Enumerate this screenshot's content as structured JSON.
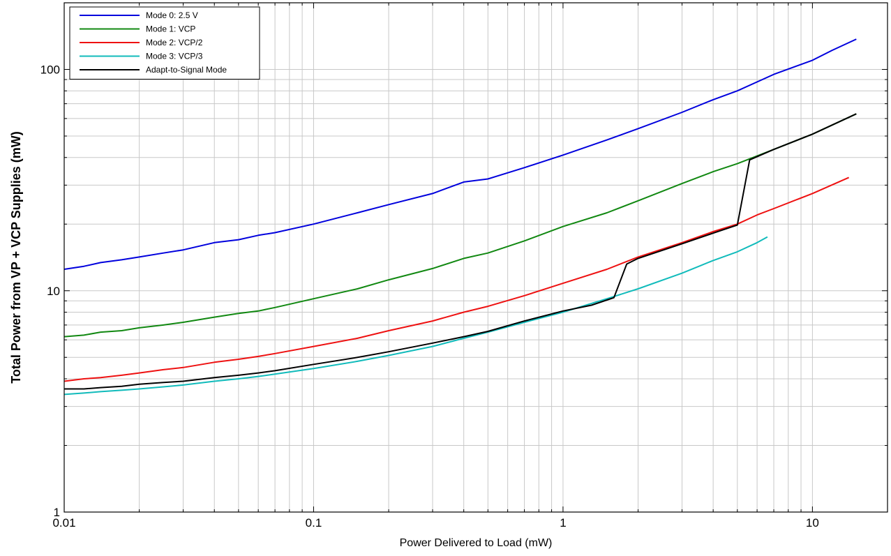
{
  "chart_data": {
    "type": "line",
    "title": "",
    "xlabel": "Power Delivered to Load (mW)",
    "ylabel": "Total Power from VP + VCP Supplies (mW)",
    "xscale": "log",
    "yscale": "log",
    "xlim": [
      0.01,
      20
    ],
    "ylim": [
      1,
      200
    ],
    "x_ticks": [
      {
        "value": 0.01,
        "label": "0.01"
      },
      {
        "value": 0.1,
        "label": "0.1"
      },
      {
        "value": 1,
        "label": "1"
      },
      {
        "value": 10,
        "label": "10"
      }
    ],
    "y_ticks": [
      {
        "value": 1,
        "label": "1"
      },
      {
        "value": 10,
        "label": "10"
      },
      {
        "value": 100,
        "label": "100"
      }
    ],
    "grid": true,
    "legend_position": "top-left",
    "series": [
      {
        "name": "Mode 0: 2.5 V",
        "color": "#0000dd",
        "x": [
          0.01,
          0.012,
          0.014,
          0.017,
          0.02,
          0.025,
          0.03,
          0.04,
          0.05,
          0.06,
          0.07,
          0.1,
          0.15,
          0.2,
          0.3,
          0.4,
          0.5,
          0.7,
          1,
          1.5,
          2,
          3,
          4,
          5,
          7,
          10,
          12,
          15
        ],
        "y": [
          12.5,
          12.9,
          13.4,
          13.8,
          14.2,
          14.8,
          15.3,
          16.5,
          17.0,
          17.8,
          18.3,
          20.0,
          22.5,
          24.5,
          27.5,
          31.0,
          32.0,
          36.0,
          41.0,
          48.0,
          54.0,
          64.0,
          73.0,
          80.0,
          95.0,
          110.0,
          122.0,
          137.0
        ]
      },
      {
        "name": "Mode 1: VCP",
        "color": "#118811",
        "x": [
          0.01,
          0.012,
          0.014,
          0.017,
          0.02,
          0.025,
          0.03,
          0.04,
          0.05,
          0.06,
          0.07,
          0.1,
          0.15,
          0.2,
          0.3,
          0.4,
          0.5,
          0.7,
          1,
          1.5,
          2,
          3,
          4,
          5,
          7,
          10,
          15
        ],
        "y": [
          6.2,
          6.3,
          6.5,
          6.6,
          6.8,
          7.0,
          7.2,
          7.6,
          7.9,
          8.1,
          8.4,
          9.2,
          10.2,
          11.2,
          12.6,
          14.0,
          14.8,
          16.8,
          19.5,
          22.5,
          25.5,
          30.5,
          34.5,
          37.5,
          43.5,
          51.0,
          63.0
        ]
      },
      {
        "name": "Mode 2: VCP/2",
        "color": "#ee1111",
        "x": [
          0.01,
          0.012,
          0.014,
          0.017,
          0.02,
          0.025,
          0.03,
          0.04,
          0.05,
          0.06,
          0.07,
          0.1,
          0.15,
          0.2,
          0.3,
          0.4,
          0.5,
          0.7,
          1,
          1.5,
          2,
          3,
          4,
          5,
          6,
          7,
          10,
          14
        ],
        "y": [
          3.9,
          4.0,
          4.05,
          4.15,
          4.25,
          4.4,
          4.5,
          4.75,
          4.9,
          5.05,
          5.2,
          5.6,
          6.1,
          6.6,
          7.3,
          8.0,
          8.5,
          9.5,
          10.8,
          12.5,
          14.2,
          16.5,
          18.5,
          20.0,
          22.0,
          23.5,
          27.5,
          32.5
        ]
      },
      {
        "name": "Mode 3: VCP/3",
        "color": "#11bbbb",
        "x": [
          0.01,
          0.012,
          0.014,
          0.017,
          0.02,
          0.025,
          0.03,
          0.04,
          0.05,
          0.06,
          0.07,
          0.1,
          0.15,
          0.2,
          0.3,
          0.4,
          0.5,
          0.7,
          1,
          1.5,
          2,
          3,
          4,
          5,
          6,
          6.6
        ],
        "y": [
          3.4,
          3.45,
          3.5,
          3.55,
          3.6,
          3.68,
          3.75,
          3.9,
          4.0,
          4.1,
          4.2,
          4.45,
          4.8,
          5.1,
          5.6,
          6.1,
          6.5,
          7.2,
          8.0,
          9.2,
          10.2,
          12.0,
          13.7,
          15.0,
          16.5,
          17.5
        ]
      },
      {
        "name": "Adapt-to-Signal Mode",
        "color": "#000000",
        "x": [
          0.01,
          0.012,
          0.014,
          0.017,
          0.02,
          0.025,
          0.03,
          0.04,
          0.05,
          0.06,
          0.07,
          0.1,
          0.15,
          0.2,
          0.3,
          0.4,
          0.5,
          0.7,
          1,
          1.3,
          1.6,
          1.8,
          2,
          3,
          4,
          5,
          5.6,
          7,
          10,
          15
        ],
        "y": [
          3.6,
          3.6,
          3.65,
          3.7,
          3.78,
          3.85,
          3.9,
          4.05,
          4.15,
          4.25,
          4.35,
          4.65,
          5.0,
          5.3,
          5.8,
          6.2,
          6.55,
          7.3,
          8.1,
          8.6,
          9.3,
          13.2,
          14.0,
          16.3,
          18.2,
          19.8,
          39.0,
          43.5,
          51.0,
          63.0
        ]
      }
    ]
  }
}
